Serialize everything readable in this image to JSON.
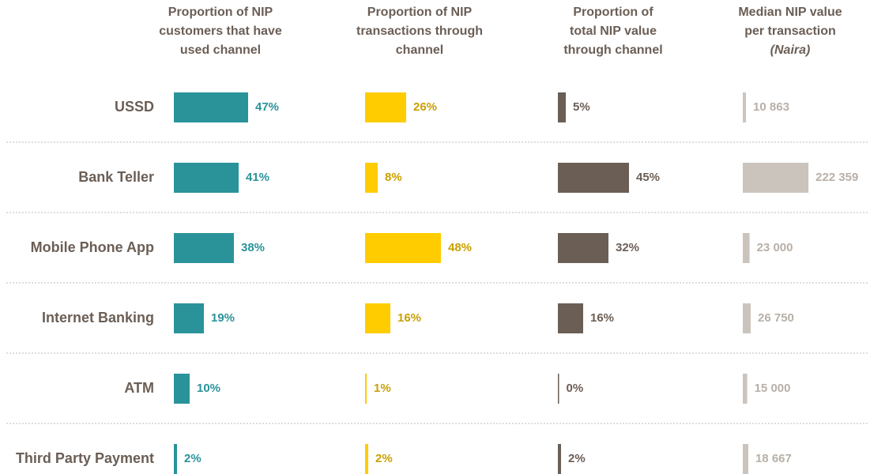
{
  "chart_data": {
    "type": "bar",
    "categories": [
      "USSD",
      "Bank Teller",
      "Mobile Phone App",
      "Internet Banking",
      "ATM",
      "Third Party  Payment"
    ],
    "series": [
      {
        "name": [
          "Proportion of NIP",
          "customers that have",
          "used channel"
        ],
        "color": "#2a939a",
        "label_color": "#2a939a",
        "values": [
          47,
          41,
          38,
          19,
          10,
          2
        ],
        "value_labels": [
          "47%",
          "41%",
          "38%",
          "19%",
          "10%",
          "2%"
        ],
        "xlim": [
          0,
          100
        ]
      },
      {
        "name": [
          "Proportion of NIP",
          "transactions through",
          "channel"
        ],
        "color": "#ffcc00",
        "label_color": "#c9a000",
        "values": [
          26,
          8,
          48,
          16,
          1,
          2
        ],
        "value_labels": [
          "26%",
          "8%",
          "48%",
          "16%",
          "1%",
          "2%"
        ],
        "xlim": [
          0,
          100
        ]
      },
      {
        "name": [
          "Proportion of",
          "total NIP value",
          "through channel"
        ],
        "color": "#6b5e55",
        "label_color": "#6b5e55",
        "values": [
          5,
          45,
          32,
          16,
          0,
          2
        ],
        "value_labels": [
          "5%",
          "45%",
          "32%",
          "16%",
          "0%",
          "2%"
        ],
        "xlim": [
          0,
          100
        ]
      },
      {
        "name": [
          "Median NIP value",
          "per transaction"
        ],
        "unit_label": "(Naira)",
        "color": "#cbc4bd",
        "label_color": "#b8b0a8",
        "values": [
          10863,
          222359,
          23000,
          26750,
          15000,
          18667
        ],
        "value_labels": [
          "10 863",
          "222 359",
          "23 000",
          "26 750",
          "15 000",
          "18 667"
        ],
        "xlim": [
          0,
          535000
        ]
      }
    ]
  }
}
